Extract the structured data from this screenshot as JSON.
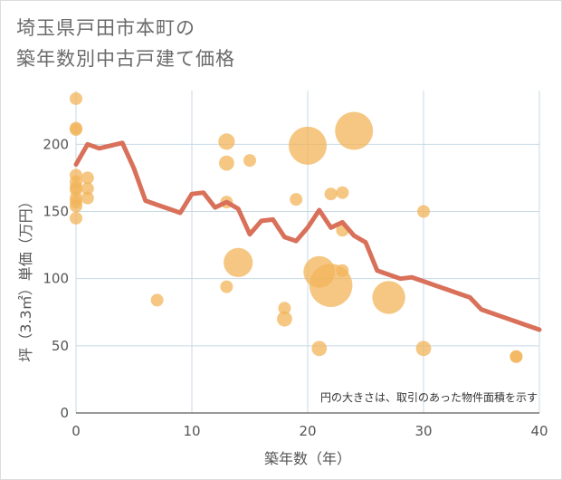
{
  "title_line1": "埼玉県戸田市本町の",
  "title_line2": "築年数別中古戸建て価格",
  "chart_data": {
    "type": "scatter",
    "title": "埼玉県戸田市本町の築年数別中古戸建て価格",
    "xlabel": "築年数（年）",
    "ylabel": "坪（3.3㎡）単価（万円）",
    "xlim": [
      0,
      40
    ],
    "ylim": [
      0,
      240
    ],
    "xticks": [
      0,
      10,
      20,
      30,
      40
    ],
    "yticks": [
      0,
      50,
      100,
      150,
      200
    ],
    "grid": true,
    "annotation": "円の大きさは、取引のあった物件面積を示す",
    "colors": {
      "bubble": "#f2b45a",
      "line": "#d9705a",
      "grid": "#c7d9e6"
    },
    "bubbles": [
      {
        "x": 0,
        "y": 234,
        "size": 1
      },
      {
        "x": 0,
        "y": 212,
        "size": 1
      },
      {
        "x": 0,
        "y": 211,
        "size": 1
      },
      {
        "x": 0,
        "y": 177,
        "size": 1
      },
      {
        "x": 0,
        "y": 172,
        "size": 1
      },
      {
        "x": 0,
        "y": 168,
        "size": 1
      },
      {
        "x": 0,
        "y": 166,
        "size": 1
      },
      {
        "x": 0,
        "y": 160,
        "size": 1
      },
      {
        "x": 0,
        "y": 157,
        "size": 1
      },
      {
        "x": 0,
        "y": 154,
        "size": 1
      },
      {
        "x": 0,
        "y": 145,
        "size": 1
      },
      {
        "x": 1,
        "y": 175,
        "size": 1
      },
      {
        "x": 1,
        "y": 167,
        "size": 1
      },
      {
        "x": 1,
        "y": 160,
        "size": 1
      },
      {
        "x": 7,
        "y": 84,
        "size": 1
      },
      {
        "x": 13,
        "y": 202,
        "size": 1.3
      },
      {
        "x": 13,
        "y": 186,
        "size": 1.2
      },
      {
        "x": 13,
        "y": 157,
        "size": 1
      },
      {
        "x": 13,
        "y": 94,
        "size": 1
      },
      {
        "x": 14,
        "y": 112,
        "size": 2.3
      },
      {
        "x": 15,
        "y": 188,
        "size": 1
      },
      {
        "x": 18,
        "y": 78,
        "size": 1
      },
      {
        "x": 18,
        "y": 70,
        "size": 1.2
      },
      {
        "x": 19,
        "y": 159,
        "size": 1
      },
      {
        "x": 20,
        "y": 199,
        "size": 3.0
      },
      {
        "x": 21,
        "y": 105,
        "size": 2.5
      },
      {
        "x": 21,
        "y": 48,
        "size": 1.2
      },
      {
        "x": 22,
        "y": 95,
        "size": 3.4
      },
      {
        "x": 22,
        "y": 163,
        "size": 1
      },
      {
        "x": 23,
        "y": 164,
        "size": 1
      },
      {
        "x": 23,
        "y": 136,
        "size": 1
      },
      {
        "x": 23,
        "y": 106,
        "size": 1
      },
      {
        "x": 24,
        "y": 210,
        "size": 3.0
      },
      {
        "x": 27,
        "y": 86,
        "size": 2.6
      },
      {
        "x": 30,
        "y": 150,
        "size": 1
      },
      {
        "x": 30,
        "y": 48,
        "size": 1.2
      },
      {
        "x": 38,
        "y": 42,
        "size": 1
      },
      {
        "x": 38,
        "y": 42,
        "size": 1
      }
    ],
    "line": {
      "x": [
        0,
        1,
        2,
        3,
        4,
        5,
        6,
        7,
        8,
        9,
        10,
        11,
        12,
        13,
        14,
        15,
        16,
        17,
        18,
        19,
        20,
        21,
        22,
        23,
        24,
        25,
        26,
        27,
        28,
        29,
        30,
        31,
        32,
        33,
        34,
        35,
        36,
        37,
        38,
        39,
        40
      ],
      "y": [
        185,
        200,
        197,
        199,
        201,
        182,
        158,
        155,
        152,
        149,
        163,
        164,
        153,
        157,
        152,
        133,
        143,
        144,
        131,
        128,
        138,
        151,
        138,
        142,
        132,
        127,
        106,
        103,
        100,
        101,
        98,
        95,
        92,
        89,
        86,
        77,
        74,
        71,
        68,
        65,
        62
      ]
    }
  }
}
